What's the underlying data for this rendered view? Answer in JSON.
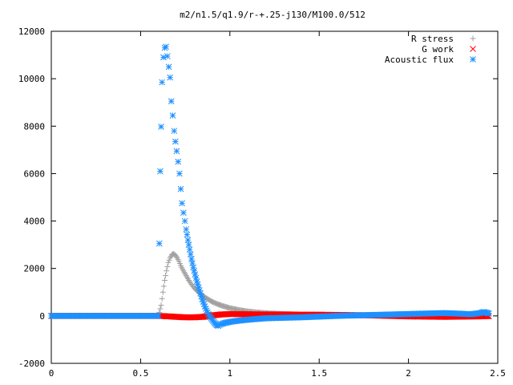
{
  "chart_data": {
    "type": "scatter",
    "title": "m2/n1.5/q1.9/r-+.25-j130/M100.0/512",
    "xlabel": "",
    "ylabel": "",
    "xlim": [
      0,
      2.5
    ],
    "ylim": [
      -2000,
      12000
    ],
    "xticks": [
      0,
      0.5,
      1,
      1.5,
      2,
      2.5
    ],
    "xtick_labels": [
      "0",
      "0.5",
      "1",
      "1.5",
      "2",
      "2.5"
    ],
    "yticks": [
      -2000,
      0,
      2000,
      4000,
      6000,
      8000,
      10000,
      12000
    ],
    "ytick_labels": [
      "-2000",
      "0",
      "2000",
      "4000",
      "6000",
      "8000",
      "10000",
      "12000"
    ],
    "grid": false,
    "legend_position": "top-right",
    "series": [
      {
        "name": "R stress",
        "marker": "plus",
        "color": "#a0a0a0",
        "x": [
          0,
          0.2,
          0.4,
          0.6,
          0.615,
          0.625,
          0.635,
          0.645,
          0.655,
          0.665,
          0.675,
          0.685,
          0.695,
          0.705,
          0.715,
          0.725,
          0.74,
          0.755,
          0.77,
          0.785,
          0.8,
          0.82,
          0.84,
          0.86,
          0.88,
          0.9,
          0.93,
          0.96,
          1.0,
          1.05,
          1.1,
          1.15,
          1.2,
          1.3,
          1.4,
          1.5,
          1.6,
          1.7,
          1.8,
          1.9,
          2.0,
          2.1,
          2.2,
          2.3,
          2.4,
          2.45
        ],
        "y": [
          0,
          0,
          0,
          0,
          450,
          1000,
          1500,
          1900,
          2250,
          2450,
          2580,
          2620,
          2560,
          2450,
          2300,
          2120,
          1900,
          1700,
          1500,
          1330,
          1180,
          1030,
          900,
          790,
          690,
          600,
          500,
          420,
          330,
          250,
          190,
          150,
          120,
          80,
          60,
          50,
          45,
          40,
          35,
          30,
          25,
          20,
          15,
          10,
          5,
          0
        ]
      },
      {
        "name": "G work",
        "marker": "cross",
        "color": "#ff0000",
        "x": [
          0,
          0.2,
          0.4,
          0.6,
          0.63,
          0.66,
          0.7,
          0.75,
          0.8,
          0.85,
          0.9,
          0.95,
          1.0,
          1.1,
          1.2,
          1.3,
          1.4,
          1.5,
          1.6,
          1.7,
          1.8,
          1.9,
          2.0,
          2.1,
          2.2,
          2.3,
          2.4,
          2.45
        ],
        "y": [
          0,
          0,
          0,
          0,
          -10,
          -20,
          -40,
          -60,
          -60,
          -40,
          20,
          60,
          80,
          70,
          60,
          60,
          50,
          50,
          40,
          30,
          20,
          0,
          -20,
          -30,
          -40,
          -30,
          -20,
          -10
        ]
      },
      {
        "name": "Acoustic flux",
        "marker": "star",
        "color": "#1e90ff",
        "x": [
          0,
          0.1,
          0.2,
          0.3,
          0.4,
          0.5,
          0.6,
          0.61,
          0.62,
          0.628,
          0.635,
          0.642,
          0.65,
          0.658,
          0.665,
          0.672,
          0.68,
          0.688,
          0.695,
          0.702,
          0.71,
          0.718,
          0.725,
          0.732,
          0.74,
          0.748,
          0.755,
          0.765,
          0.775,
          0.785,
          0.795,
          0.805,
          0.815,
          0.825,
          0.835,
          0.845,
          0.855,
          0.865,
          0.875,
          0.885,
          0.895,
          0.905,
          0.915,
          0.925,
          0.935,
          0.95,
          0.97,
          1.0,
          1.05,
          1.1,
          1.15,
          1.2,
          1.3,
          1.4,
          1.5,
          1.6,
          1.7,
          1.8,
          1.9,
          2.0,
          2.1,
          2.2,
          2.3,
          2.35,
          2.4,
          2.42,
          2.44,
          2.45
        ],
        "y": [
          0,
          0,
          0,
          0,
          0,
          0,
          0,
          6100,
          9850,
          10900,
          11300,
          11350,
          10950,
          10500,
          10050,
          9050,
          8450,
          7800,
          7350,
          6950,
          6500,
          6000,
          5350,
          4750,
          4350,
          4000,
          3650,
          3200,
          2800,
          2400,
          2050,
          1750,
          1450,
          1200,
          950,
          700,
          500,
          300,
          150,
          0,
          -100,
          -200,
          -300,
          -380,
          -420,
          -350,
          -300,
          -250,
          -200,
          -160,
          -130,
          -100,
          -80,
          -60,
          -30,
          0,
          20,
          40,
          60,
          80,
          100,
          120,
          90,
          70,
          120,
          170,
          130,
          100
        ]
      }
    ]
  }
}
